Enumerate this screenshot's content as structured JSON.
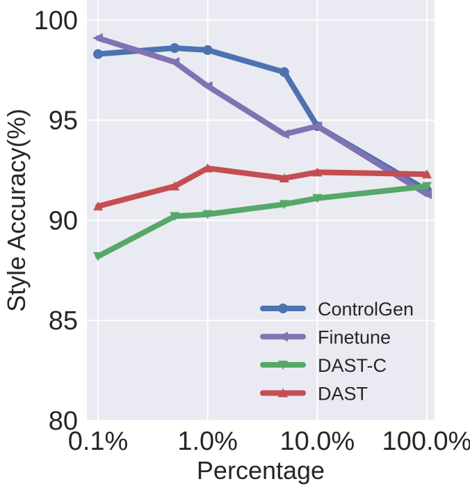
{
  "chart_data": {
    "type": "line",
    "title": "",
    "xlabel": "Percentage",
    "ylabel": "Style Accuracy(%)",
    "x_scale": "log",
    "x_tick_values": [
      0.1,
      1.0,
      10.0,
      100.0
    ],
    "x_tick_labels": [
      "0.1%",
      "1.0%",
      "10.0%",
      "100.0%"
    ],
    "y_ticks": [
      80,
      85,
      90,
      95,
      100
    ],
    "ylim": [
      80,
      101
    ],
    "grid": true,
    "legend_position": "lower-right",
    "x": [
      0.1,
      0.5,
      1.0,
      5.0,
      10.0,
      100.0
    ],
    "series": [
      {
        "name": "ControlGen",
        "color": "#4c72b0",
        "marker": "circle",
        "values": [
          98.3,
          98.6,
          98.5,
          97.4,
          94.7,
          91.5
        ]
      },
      {
        "name": "Finetune",
        "color": "#8172b2",
        "marker": "triangle-left",
        "values": [
          99.1,
          97.9,
          96.7,
          94.3,
          94.7,
          91.3
        ]
      },
      {
        "name": "DAST-C",
        "color": "#55a868",
        "marker": "triangle-down",
        "values": [
          88.2,
          90.2,
          90.3,
          90.8,
          91.1,
          91.7
        ]
      },
      {
        "name": "DAST",
        "color": "#c44e52",
        "marker": "triangle-up",
        "values": [
          90.7,
          91.7,
          92.6,
          92.1,
          92.4,
          92.3
        ]
      }
    ]
  }
}
